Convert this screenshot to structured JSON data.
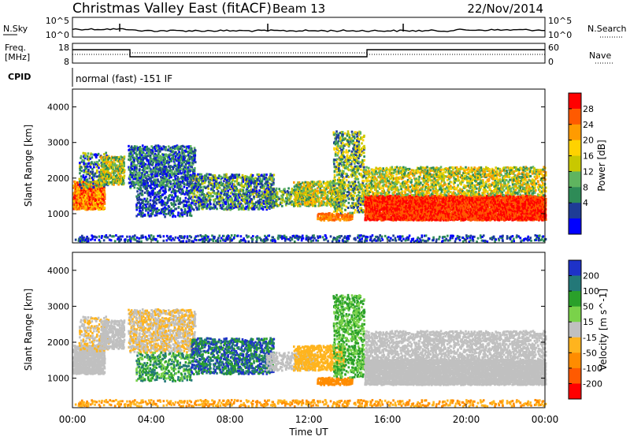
{
  "header": {
    "title": "Christmas Valley East (fitACF)",
    "beam": "Beam 13",
    "date": "22/Nov/2014"
  },
  "top_panels": {
    "nsky_label": "N.Sky",
    "nsearch_label": "N.Search",
    "freq_label_1": "Freq.",
    "freq_label_2": "[MHz]",
    "nave_label": "Nave",
    "cpid_label": "CPID",
    "cpid_text": "normal (fast) -151 IF",
    "noise_ticks_left": [
      "10^5",
      "10^0"
    ],
    "noise_ticks_right": [
      "10^5",
      "10^0"
    ],
    "freq_ticks": [
      "18",
      "8"
    ],
    "nave_ticks": [
      "60",
      "0"
    ]
  },
  "power_colorbar": {
    "label": "Power [dB]",
    "ticks": [
      "28",
      "24",
      "20",
      "16",
      "12",
      "8",
      "4"
    ],
    "colors": [
      "#ff0000",
      "#ff5a00",
      "#ff9b00",
      "#ffd200",
      "#c8c800",
      "#5fb45f",
      "#2e8b57",
      "#1e3c96",
      "#0000ff"
    ]
  },
  "velocity_colorbar": {
    "label": "Velocity [m s^-1]",
    "ticks": [
      "200",
      "100",
      "50",
      "15",
      "-15",
      "-50",
      "-100",
      "-200"
    ],
    "colors": [
      "#1e32c8",
      "#237878",
      "#2aa02a",
      "#7ad24a",
      "#c0c0c0",
      "#ffb41e",
      "#ff8c00",
      "#ff5a00",
      "#ff0000"
    ]
  },
  "chart_data": {
    "type": "heatmap",
    "x_ticks": [
      "00:00",
      "04:00",
      "08:00",
      "12:00",
      "16:00",
      "20:00",
      "00:00"
    ],
    "xlabel": "Time UT",
    "ylabel": "Slant Range [km]",
    "y_ticks": [
      1000,
      2000,
      3000,
      4000
    ],
    "ylim": [
      180,
      4500
    ],
    "xlim_hours": [
      0,
      24
    ]
  }
}
